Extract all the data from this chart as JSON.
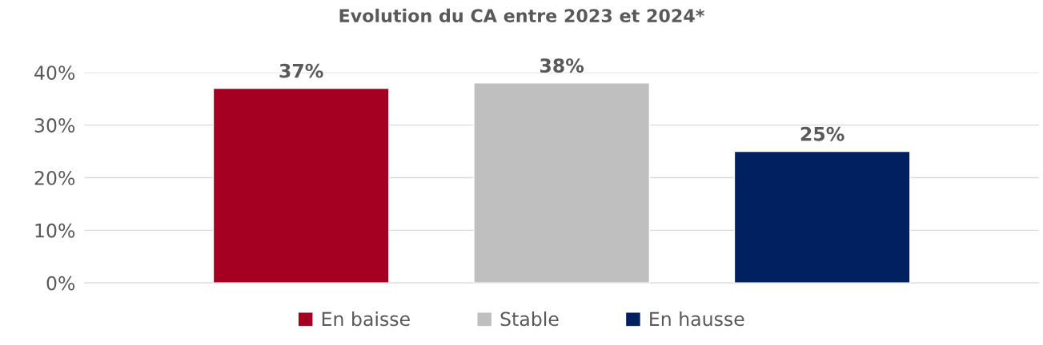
{
  "chart_data": {
    "type": "bar",
    "title": "Evolution du CA entre 2023 et 2024*",
    "categories": [
      null
    ],
    "series": [
      {
        "name": "En baisse",
        "color": "#a50021",
        "values": [
          37
        ],
        "value_labels": [
          "37%"
        ]
      },
      {
        "name": "Stable",
        "color": "#bfbfbf",
        "values": [
          38
        ],
        "value_labels": [
          "38%"
        ]
      },
      {
        "name": "En hausse",
        "color": "#002060",
        "values": [
          25
        ],
        "value_labels": [
          "25%"
        ]
      }
    ],
    "ylim": [
      0,
      40
    ],
    "yticks": [
      {
        "value": 0,
        "label": "0%"
      },
      {
        "value": 10,
        "label": "10%"
      },
      {
        "value": 20,
        "label": "20%"
      },
      {
        "value": 30,
        "label": "30%"
      },
      {
        "value": 40,
        "label": "40%"
      }
    ],
    "grid": "y",
    "legend": "bottom"
  }
}
